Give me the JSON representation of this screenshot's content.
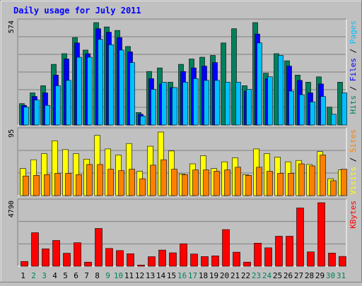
{
  "colors": {
    "background": "#c0c0c0",
    "panel": "#c0c0c0",
    "grid": "#808080",
    "title": "#0000ff",
    "hits": "#00805c",
    "files": "#0000ff",
    "pages": "#00c0ff",
    "visits": "#ffff00",
    "sites": "#ff8000",
    "kbytes": "#ff0000",
    "weekend_label": "#00805c",
    "weekday_label": "#000000"
  },
  "chart_data": [
    {
      "type": "bar",
      "title": "Daily usage for July 2011",
      "categories": [
        "1",
        "2",
        "3",
        "4",
        "5",
        "6",
        "7",
        "8",
        "9",
        "10",
        "11",
        "12",
        "13",
        "14",
        "15",
        "16",
        "17",
        "18",
        "19",
        "20",
        "21",
        "22",
        "23",
        "24",
        "25",
        "26",
        "27",
        "28",
        "29",
        "30",
        "31"
      ],
      "weekend_days": [
        "2",
        "3",
        "9",
        "10",
        "16",
        "17",
        "23",
        "24",
        "30",
        "31"
      ],
      "y_max_label": "574",
      "ylim": [
        0,
        574
      ],
      "legend": [
        {
          "key": "pages",
          "label": "Pages"
        },
        {
          "sep": true,
          "label": " / "
        },
        {
          "key": "files",
          "label": "Files"
        },
        {
          "sep": true,
          "label": " / "
        },
        {
          "key": "hits",
          "label": "Hits"
        }
      ],
      "series": [
        {
          "name": "Hits",
          "key": "hits",
          "values": [
            120,
            180,
            220,
            340,
            400,
            490,
            420,
            574,
            550,
            530,
            440,
            70,
            300,
            320,
            240,
            340,
            370,
            380,
            390,
            460,
            540,
            220,
            574,
            290,
            400,
            360,
            280,
            240,
            270,
            100,
            240
          ]
        },
        {
          "name": "Files",
          "key": "files",
          "values": [
            110,
            160,
            180,
            280,
            370,
            460,
            400,
            540,
            520,
            490,
            410,
            60,
            260,
            230,
            210,
            300,
            320,
            330,
            350,
            0,
            0,
            190,
            510,
            260,
            0,
            330,
            250,
            180,
            230,
            0,
            0
          ]
        },
        {
          "name": "Pages",
          "key": "pages",
          "values": [
            100,
            140,
            110,
            220,
            250,
            380,
            380,
            480,
            450,
            420,
            350,
            50,
            200,
            240,
            210,
            240,
            260,
            250,
            250,
            240,
            240,
            200,
            460,
            270,
            390,
            190,
            170,
            130,
            160,
            60,
            180
          ]
        }
      ]
    },
    {
      "type": "bar",
      "categories": [
        "1",
        "2",
        "3",
        "4",
        "5",
        "6",
        "7",
        "8",
        "9",
        "10",
        "11",
        "12",
        "13",
        "14",
        "15",
        "16",
        "17",
        "18",
        "19",
        "20",
        "21",
        "22",
        "23",
        "24",
        "25",
        "26",
        "27",
        "28",
        "29",
        "30",
        "31"
      ],
      "y_max_label": "95",
      "ylim": [
        0,
        95
      ],
      "legend": [
        {
          "key": "sites",
          "label": "Sites"
        },
        {
          "sep": true,
          "label": " / "
        },
        {
          "key": "visits",
          "label": "Visits"
        }
      ],
      "series": [
        {
          "name": "Visits",
          "key": "visits",
          "values": [
            40,
            53,
            62,
            81,
            68,
            62,
            54,
            89,
            69,
            60,
            77,
            36,
            73,
            94,
            66,
            32,
            47,
            59,
            40,
            50,
            56,
            31,
            69,
            62,
            57,
            50,
            52,
            46,
            65,
            25,
            38
          ]
        },
        {
          "name": "Sites",
          "key": "sites",
          "values": [
            29,
            30,
            31,
            33,
            33,
            31,
            46,
            46,
            39,
            37,
            39,
            25,
            45,
            53,
            39,
            31,
            38,
            38,
            36,
            38,
            42,
            30,
            42,
            36,
            33,
            33,
            47,
            44,
            60,
            22,
            39
          ]
        }
      ]
    },
    {
      "type": "bar",
      "categories": [
        "1",
        "2",
        "3",
        "4",
        "5",
        "6",
        "7",
        "8",
        "9",
        "10",
        "11",
        "12",
        "13",
        "14",
        "15",
        "16",
        "17",
        "18",
        "19",
        "20",
        "21",
        "22",
        "23",
        "24",
        "25",
        "26",
        "27",
        "28",
        "29",
        "30",
        "31"
      ],
      "y_max_label": "4790",
      "ylim": [
        0,
        4790
      ],
      "legend": [
        {
          "key": "kbytes",
          "label": "KBytes"
        }
      ],
      "series": [
        {
          "name": "KBytes",
          "key": "kbytes",
          "values": [
            360,
            2530,
            1310,
            1940,
            980,
            1770,
            310,
            2850,
            1340,
            1180,
            940,
            90,
            720,
            1220,
            1010,
            1690,
            920,
            730,
            780,
            2760,
            1060,
            310,
            1740,
            1390,
            2260,
            2260,
            4390,
            1080,
            4790,
            990,
            740
          ]
        }
      ]
    }
  ]
}
